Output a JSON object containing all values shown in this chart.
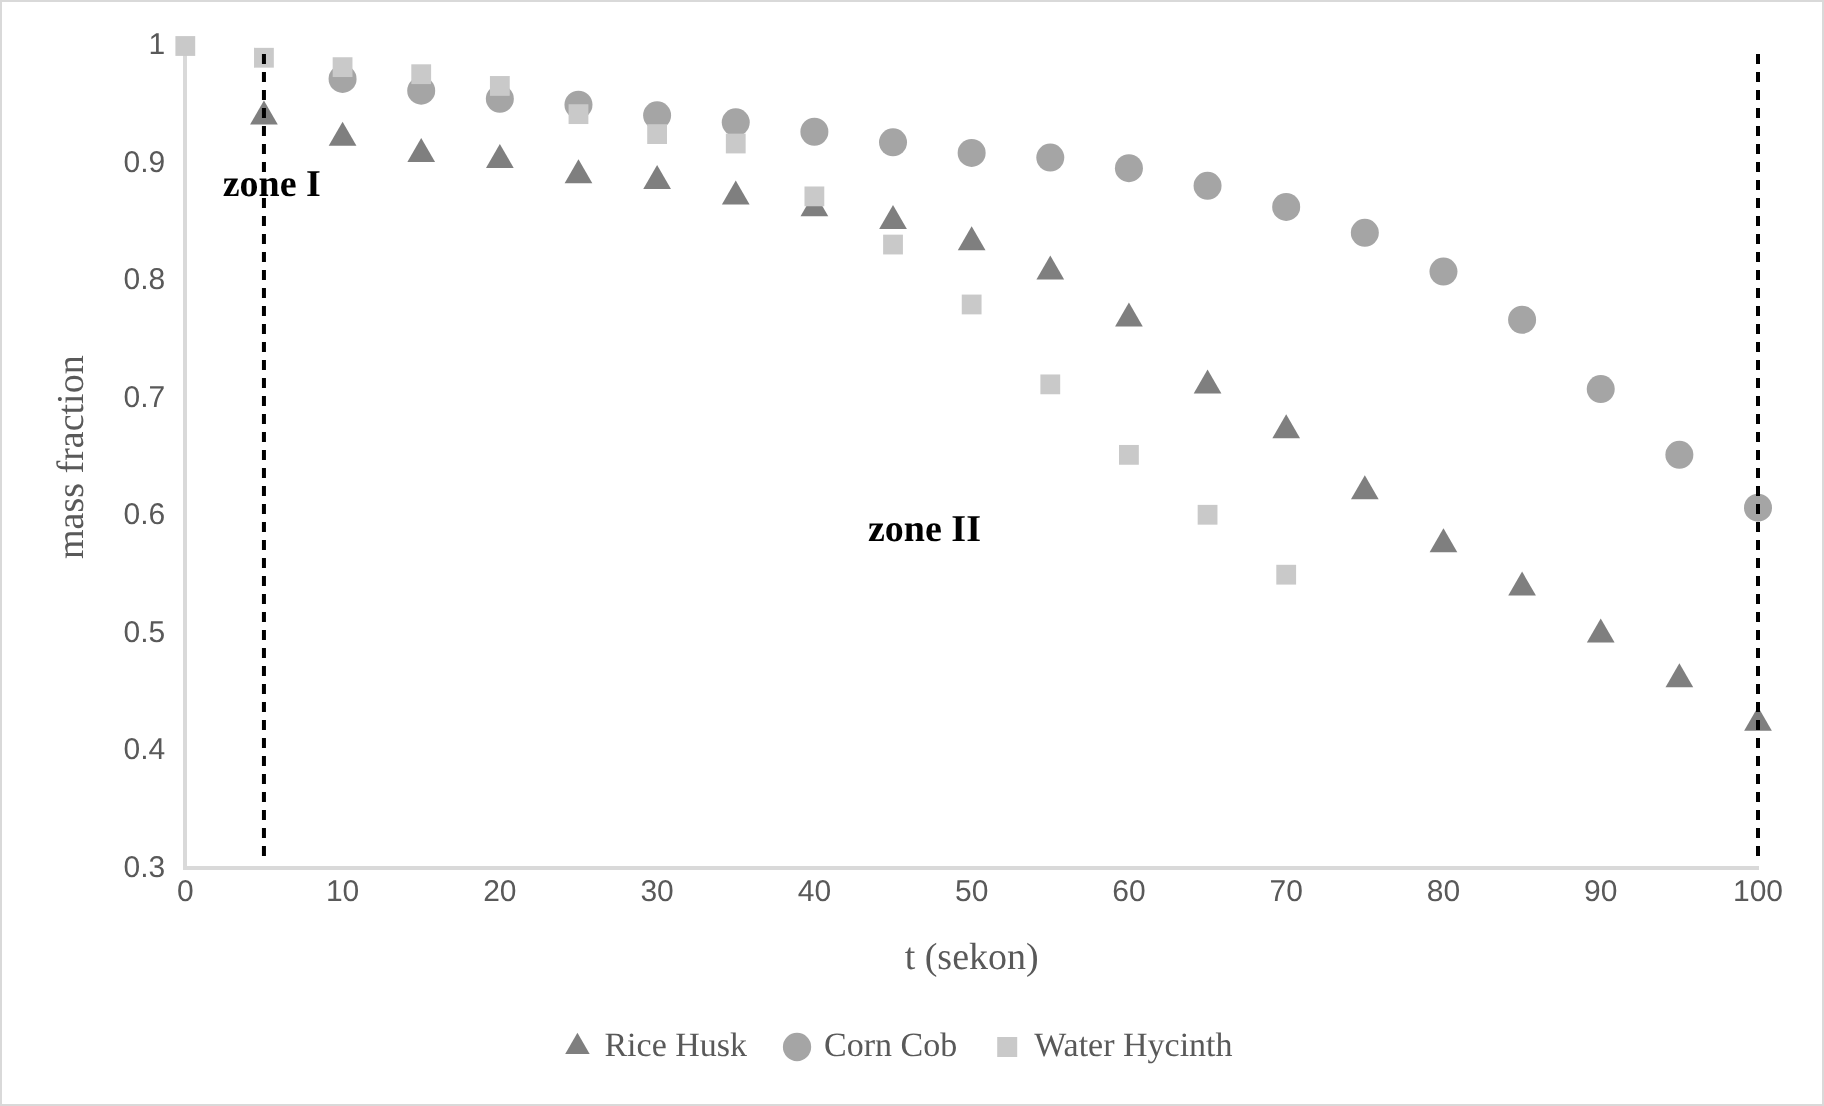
{
  "chart_data": {
    "type": "scatter",
    "xlabel": "t (sekon)",
    "ylabel": "mass fraction",
    "x": [
      0,
      5,
      10,
      15,
      20,
      25,
      30,
      35,
      40,
      45,
      50,
      55,
      60,
      65,
      70,
      75,
      80,
      85,
      90,
      95,
      100
    ],
    "series": [
      {
        "name": "Rice Husk",
        "color": "#7f7f7f",
        "marker": "triangle",
        "values": [
          null,
          0.94,
          0.922,
          0.908,
          0.903,
          0.89,
          0.885,
          0.872,
          0.862,
          0.851,
          0.833,
          0.808,
          0.768,
          0.711,
          0.673,
          0.621,
          0.576,
          0.539,
          0.499,
          0.461,
          0.424
        ]
      },
      {
        "name": "Corn Cob",
        "color": "#a5a5a5",
        "marker": "circle",
        "values": [
          null,
          null,
          0.972,
          0.962,
          0.955,
          0.95,
          0.941,
          0.935,
          0.927,
          0.918,
          0.909,
          0.905,
          0.896,
          0.881,
          0.863,
          0.841,
          0.808,
          0.767,
          0.708,
          0.652,
          0.607
        ]
      },
      {
        "name": "Water Hycinth",
        "color": "#c9c9c9",
        "marker": "square",
        "values": [
          1,
          0.99,
          0.982,
          0.976,
          0.966,
          0.942,
          0.925,
          0.917,
          0.872,
          0.831,
          0.78,
          0.712,
          0.652,
          0.601,
          0.55,
          null,
          null,
          null,
          null,
          null,
          null
        ]
      }
    ],
    "xlim": [
      0,
      100
    ],
    "xticks": [
      0,
      10,
      20,
      30,
      40,
      50,
      60,
      70,
      80,
      90,
      100
    ],
    "ylim": [
      0.3,
      1
    ],
    "yticks": [
      {
        "value": 0.3,
        "label": "0.3"
      },
      {
        "value": 0.4,
        "label": "0.4"
      },
      {
        "value": 0.5,
        "label": "0.5"
      },
      {
        "value": 0.6,
        "label": "0.6"
      },
      {
        "value": 0.7,
        "label": "0.7"
      },
      {
        "value": 0.8,
        "label": "0.8"
      },
      {
        "value": 0.9,
        "label": "0.9"
      },
      {
        "value": 1,
        "label": "1"
      }
    ],
    "grid": false,
    "legend": "bottom",
    "ref_lines": [
      {
        "axis": "x",
        "value": 5,
        "color": "#000000",
        "line_style": "dashed"
      },
      {
        "axis": "x",
        "value": 100,
        "color": "#000000",
        "line_style": "dashed"
      }
    ],
    "annotations": [
      "zone I",
      "zone II"
    ]
  }
}
